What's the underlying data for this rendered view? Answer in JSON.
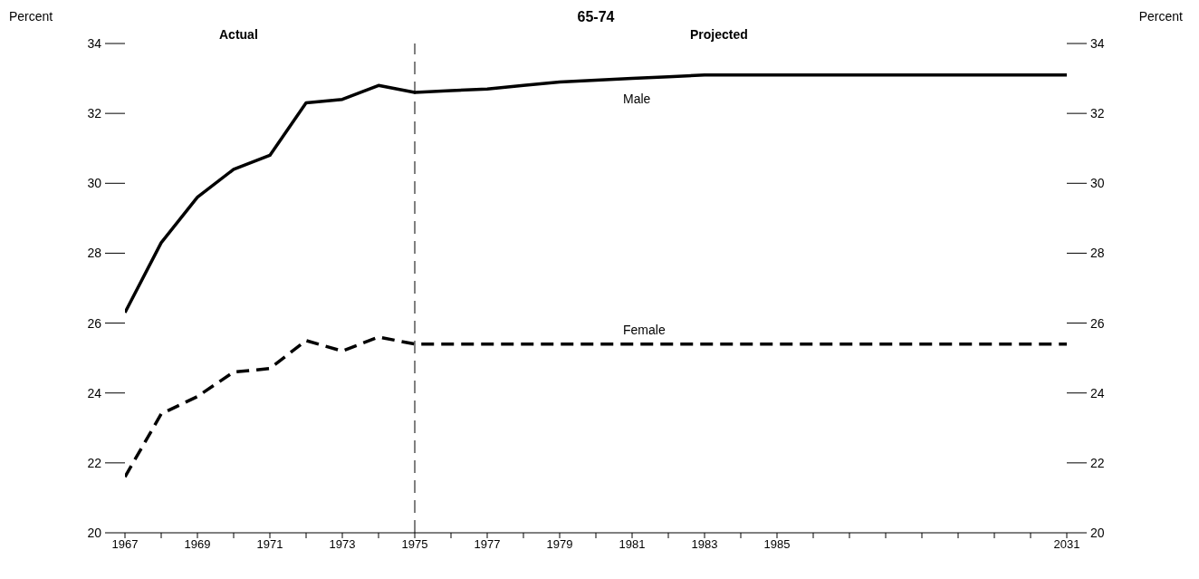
{
  "chart_data": {
    "type": "line",
    "title": "65-74",
    "ylabel": "Percent",
    "y2label": "Percent",
    "categories": [
      "1967",
      null,
      "1969",
      null,
      "1971",
      null,
      "1973",
      null,
      "1975",
      null,
      "1977",
      null,
      "1979",
      null,
      "1981",
      null,
      "1983",
      null,
      "1985",
      null,
      null,
      null,
      null,
      null,
      null,
      null,
      "2031"
    ],
    "series": [
      {
        "name": "Male",
        "color": "#000000",
        "line_style": "solid",
        "values": [
          26.3,
          28.3,
          29.6,
          30.4,
          30.8,
          32.3,
          32.4,
          32.8,
          32.6,
          32.65,
          32.7,
          32.8,
          32.9,
          32.95,
          33.0,
          33.05,
          33.1,
          33.1,
          33.1,
          33.1,
          33.1,
          33.1,
          33.1,
          33.1,
          33.1,
          33.1,
          33.1
        ]
      },
      {
        "name": "Female",
        "color": "#000000",
        "line_style": "dashed",
        "values": [
          21.6,
          23.4,
          23.9,
          24.6,
          24.7,
          25.5,
          25.2,
          25.6,
          25.4,
          25.4,
          25.4,
          25.4,
          25.4,
          25.4,
          25.4,
          25.4,
          25.4,
          25.4,
          25.4,
          25.4,
          25.4,
          25.4,
          25.4,
          25.4,
          25.4,
          25.4,
          25.4
        ]
      }
    ],
    "ylim": [
      20,
      34
    ],
    "yticks": [
      20,
      22,
      24,
      26,
      28,
      30,
      32,
      34
    ],
    "y2lim": [
      20,
      34
    ],
    "y2ticks": [
      20,
      22,
      24,
      26,
      28,
      30,
      32,
      34
    ],
    "ref_lines": [
      {
        "axis": "x",
        "value": "1975",
        "line_style": "dashed",
        "color": "#000000"
      }
    ],
    "annotations": [
      "Actual",
      "Projected"
    ],
    "grid": false,
    "legend": false,
    "marker": "none"
  }
}
